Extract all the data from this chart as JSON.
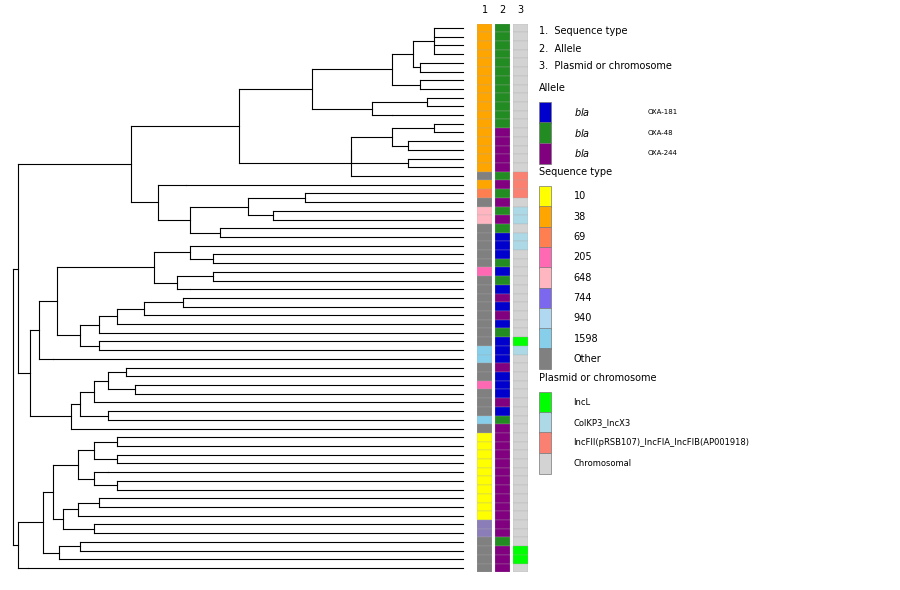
{
  "n_isolates": 63,
  "col1_colors": [
    "#FFA500",
    "#FFA500",
    "#FFA500",
    "#FFA500",
    "#FFA500",
    "#FFA500",
    "#FFA500",
    "#FFA500",
    "#FFA500",
    "#FFA500",
    "#FFA500",
    "#FFA500",
    "#FFA500",
    "#FFA500",
    "#FFA500",
    "#FFA500",
    "#FFA500",
    "#808080",
    "#FFA500",
    "#FF7F50",
    "#808080",
    "#FFB6C1",
    "#FFB6C1",
    "#808080",
    "#808080",
    "#808080",
    "#808080",
    "#808080",
    "#FF69B4",
    "#808080",
    "#808080",
    "#808080",
    "#808080",
    "#808080",
    "#808080",
    "#808080",
    "#808080",
    "#87CEEB",
    "#87CEEB",
    "#808080",
    "#808080",
    "#FF69B4",
    "#808080",
    "#808080",
    "#808080",
    "#87CEEB",
    "#808080",
    "#FFFF00",
    "#FFFF00",
    "#FFFF00",
    "#FFFF00",
    "#FFFF00",
    "#FFFF00",
    "#FFFF00",
    "#FFFF00",
    "#FFFF00",
    "#FFFF00",
    "#8B7EB8",
    "#8B7EB8",
    "#808080",
    "#808080",
    "#808080",
    "#808080"
  ],
  "col2_colors": [
    "#228B22",
    "#228B22",
    "#228B22",
    "#228B22",
    "#228B22",
    "#228B22",
    "#228B22",
    "#228B22",
    "#228B22",
    "#228B22",
    "#228B22",
    "#228B22",
    "#800080",
    "#800080",
    "#800080",
    "#800080",
    "#800080",
    "#228B22",
    "#800080",
    "#228B22",
    "#800080",
    "#228B22",
    "#800080",
    "#228B22",
    "#0000CD",
    "#0000CD",
    "#0000CD",
    "#228B22",
    "#0000CD",
    "#228B22",
    "#0000CD",
    "#800080",
    "#0000CD",
    "#800080",
    "#0000CD",
    "#228B22",
    "#0000CD",
    "#0000CD",
    "#0000CD",
    "#800080",
    "#0000CD",
    "#0000CD",
    "#0000CD",
    "#800080",
    "#0000CD",
    "#228B22",
    "#800080",
    "#800080",
    "#800080",
    "#800080",
    "#800080",
    "#800080",
    "#800080",
    "#800080",
    "#800080",
    "#800080",
    "#800080",
    "#800080",
    "#800080",
    "#228B22",
    "#800080",
    "#800080",
    "#800080"
  ],
  "col3_colors": [
    "#D3D3D3",
    "#D3D3D3",
    "#D3D3D3",
    "#D3D3D3",
    "#D3D3D3",
    "#D3D3D3",
    "#D3D3D3",
    "#D3D3D3",
    "#D3D3D3",
    "#D3D3D3",
    "#D3D3D3",
    "#D3D3D3",
    "#D3D3D3",
    "#D3D3D3",
    "#D3D3D3",
    "#D3D3D3",
    "#D3D3D3",
    "#FA8072",
    "#FA8072",
    "#FA8072",
    "#D3D3D3",
    "#ADD8E6",
    "#ADD8E6",
    "#D3D3D3",
    "#ADD8E6",
    "#ADD8E6",
    "#D3D3D3",
    "#D3D3D3",
    "#D3D3D3",
    "#D3D3D3",
    "#D3D3D3",
    "#D3D3D3",
    "#D3D3D3",
    "#D3D3D3",
    "#D3D3D3",
    "#D3D3D3",
    "#00FF00",
    "#ADD8E6",
    "#D3D3D3",
    "#D3D3D3",
    "#D3D3D3",
    "#D3D3D3",
    "#D3D3D3",
    "#D3D3D3",
    "#D3D3D3",
    "#D3D3D3",
    "#D3D3D3",
    "#D3D3D3",
    "#D3D3D3",
    "#D3D3D3",
    "#D3D3D3",
    "#D3D3D3",
    "#D3D3D3",
    "#D3D3D3",
    "#D3D3D3",
    "#D3D3D3",
    "#D3D3D3",
    "#D3D3D3",
    "#D3D3D3",
    "#D3D3D3",
    "#00FF00",
    "#00FF00",
    "#D3D3D3"
  ],
  "background_color": "#ffffff",
  "col_headers": [
    "1",
    "2",
    "3"
  ],
  "legend_labels_num": [
    "1.  Sequence type",
    "2.  Allele",
    "3.  Plasmid or chromosome"
  ],
  "allele_colors": [
    "#0000CD",
    "#228B22",
    "#800080"
  ],
  "allele_labels": [
    "bla_OXA-181",
    "bla_OXA-48",
    "bla_OXA-244"
  ],
  "st_colors": [
    "#FFFF00",
    "#FFA500",
    "#FF7F50",
    "#FF69B4",
    "#FFB6C1",
    "#7B68EE",
    "#B0D8F0",
    "#87CEEB",
    "#808080"
  ],
  "st_labels": [
    "10",
    "38",
    "69",
    "205",
    "648",
    "744",
    "940",
    "1598",
    "Other"
  ],
  "plasmid_colors": [
    "#00FF00",
    "#ADD8E6",
    "#FA8072",
    "#D3D3D3"
  ],
  "plasmid_labels": [
    "IncL",
    "ColKP3_IncX3",
    "IncFII(pRSB107)_IncFIA_IncFIB(AP001918)",
    "Chromosomal"
  ],
  "fig_width": 9.0,
  "fig_height": 5.9,
  "fig_dpi": 100
}
